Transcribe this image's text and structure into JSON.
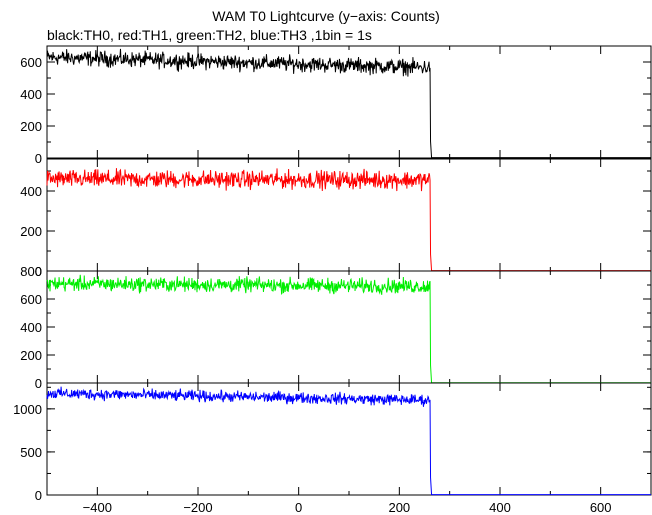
{
  "title": "WAM T0 Lightcurve (y−axis: Counts)",
  "subtitle": "black:TH0, red:TH1, green:TH2, blue:TH3 ,1bin = 1s",
  "chart_data": {
    "type": "line",
    "title": "WAM T0 Lightcurve (y−axis: Counts)",
    "subtitle": "black:TH0, red:TH1, green:TH2, blue:TH3 ,1bin = 1s",
    "xlim": [
      -500,
      700
    ],
    "x_ticks": [
      -400,
      -200,
      0,
      200,
      400,
      600
    ],
    "x_tick_labels": [
      "−400",
      "−200",
      "0",
      "200",
      "400",
      "600"
    ],
    "drop_x": 262,
    "grid": false,
    "panels": [
      {
        "name": "TH0",
        "color": "#000000",
        "ylim": [
          0,
          700
        ],
        "y_ticks": [
          0,
          200,
          400,
          600
        ],
        "start_level": 630,
        "end_level": 565,
        "noise": 24,
        "after_level": 2
      },
      {
        "name": "TH1",
        "color": "#ff0000",
        "ylim": [
          0,
          560
        ],
        "y_ticks": [
          0,
          200,
          400
        ],
        "start_level": 460,
        "end_level": 455,
        "noise": 22,
        "after_level": 2
      },
      {
        "name": "TH2",
        "color": "#00ee00",
        "ylim": [
          0,
          800
        ],
        "y_ticks": [
          0,
          200,
          400,
          600,
          800
        ],
        "start_level": 710,
        "end_level": 690,
        "noise": 26,
        "after_level": 2
      },
      {
        "name": "TH3",
        "color": "#0000ff",
        "ylim": [
          0,
          1300
        ],
        "y_ticks": [
          0,
          500,
          1000
        ],
        "start_level": 1180,
        "end_level": 1100,
        "noise": 32,
        "after_level": 5
      }
    ]
  }
}
